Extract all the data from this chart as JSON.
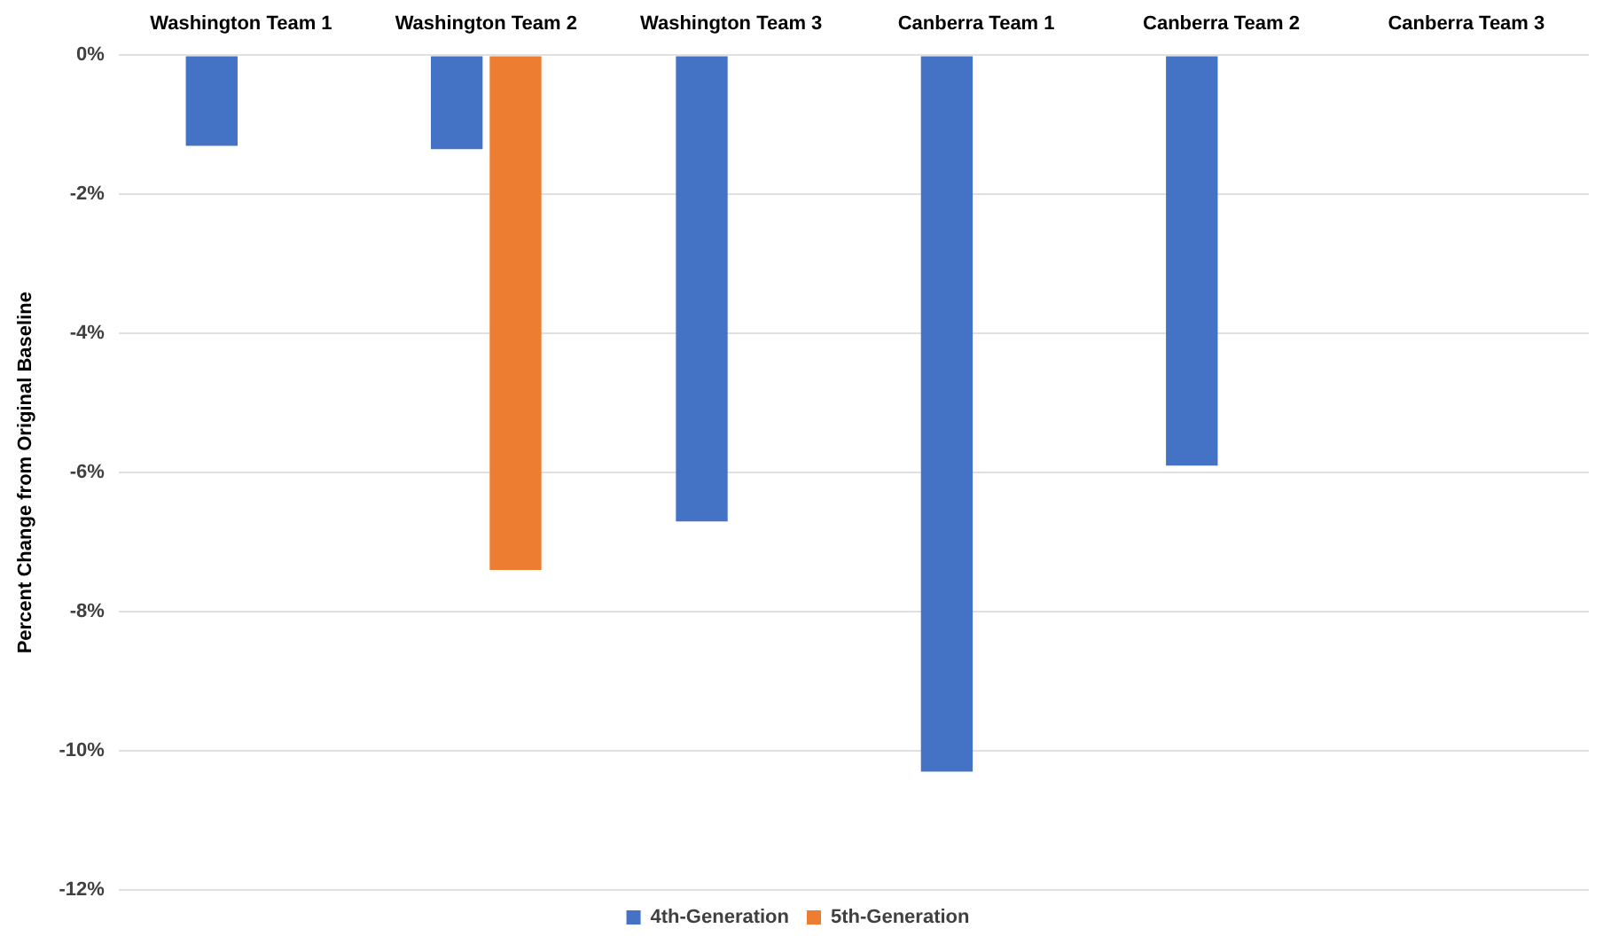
{
  "chart_data": {
    "type": "bar",
    "ylabel": "Percent Change from Original Baseline",
    "categories": [
      "Washington Team 1",
      "Washington Team 2",
      "Washington Team 3",
      "Canberra Team 1",
      "Canberra Team 2",
      "Canberra Team 3"
    ],
    "series": [
      {
        "name": "4th-Generation",
        "color": "#4472c4",
        "values": [
          -1.3,
          -1.35,
          -6.7,
          -10.3,
          -5.9,
          null
        ]
      },
      {
        "name": "5th-Generation",
        "color": "#ed7d31",
        "values": [
          null,
          -7.4,
          null,
          null,
          null,
          null
        ]
      }
    ],
    "ylim": [
      -12,
      0
    ],
    "yticks": [
      {
        "value": -12,
        "label": "-12%"
      },
      {
        "value": -10,
        "label": "-10%"
      },
      {
        "value": -8,
        "label": "-8%"
      },
      {
        "value": -6,
        "label": "-6%"
      },
      {
        "value": -4,
        "label": "-4%"
      },
      {
        "value": -2,
        "label": "-2%"
      },
      {
        "value": 0,
        "label": "0%"
      }
    ],
    "grid": "y",
    "legend": "bottom"
  }
}
